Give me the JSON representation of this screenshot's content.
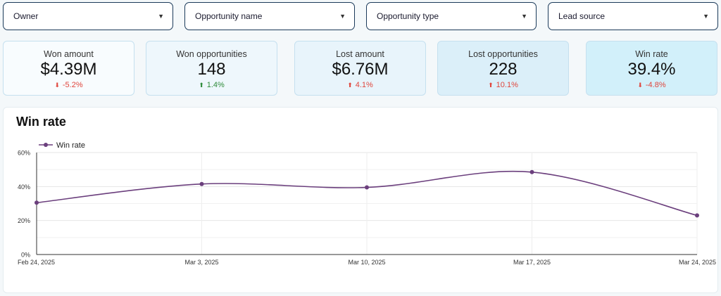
{
  "filters": [
    {
      "label": "Owner"
    },
    {
      "label": "Opportunity name"
    },
    {
      "label": "Opportunity type"
    },
    {
      "label": "Lead source"
    }
  ],
  "kpis": [
    {
      "label": "Won amount",
      "value": "$4.39M",
      "change": "-5.2%",
      "direction": "down",
      "tone": "red",
      "bg": "#f8fcfe"
    },
    {
      "label": "Won opportunities",
      "value": "148",
      "change": "1.4%",
      "direction": "up",
      "tone": "green",
      "bg": "#eef7fc"
    },
    {
      "label": "Lost amount",
      "value": "$6.76M",
      "change": "4.1%",
      "direction": "up",
      "tone": "red",
      "bg": "#e8f4fb"
    },
    {
      "label": "Lost opportunities",
      "value": "228",
      "change": "10.1%",
      "direction": "up",
      "tone": "red",
      "bg": "#dbeff9"
    },
    {
      "label": "Win rate",
      "value": "39.4%",
      "change": "-4.8%",
      "direction": "down",
      "tone": "red",
      "bg": "#d2f0fa"
    }
  ],
  "chart": {
    "title": "Win rate"
  },
  "chart_data": {
    "type": "line",
    "title": "Win rate",
    "categories": [
      "Feb 24, 2025",
      "Mar 3, 2025",
      "Mar 10, 2025",
      "Mar 17, 2025",
      "Mar 24, 2025"
    ],
    "series": [
      {
        "name": "Win rate",
        "values": [
          30.5,
          41.5,
          39.5,
          48.5,
          23
        ],
        "color": "#6b3f7d"
      }
    ],
    "yticks": [
      "0%",
      "20%",
      "40%",
      "60%"
    ],
    "ylim": [
      0,
      60
    ],
    "legend": "top-left",
    "grid": true
  }
}
